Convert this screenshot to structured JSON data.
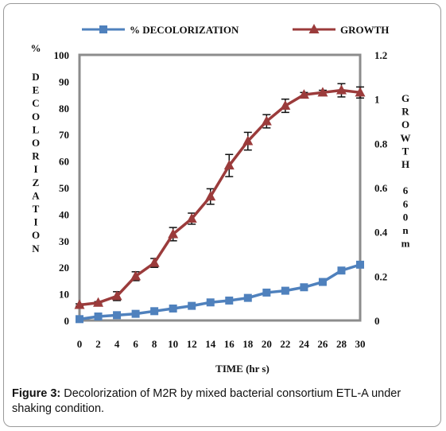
{
  "chart_data": {
    "type": "line",
    "xlabel": "TIME (hr s)",
    "ylabel_left_letters": [
      "D",
      "E",
      "C",
      "O",
      "L",
      "O",
      "R",
      "I",
      "Z",
      "A",
      "T",
      "I",
      "O",
      "N"
    ],
    "ylabel_left_prefix": "%",
    "ylabel_right_letters": [
      "G",
      "R",
      "O",
      "W",
      "T",
      "H",
      "",
      "6",
      "6",
      "0",
      "n",
      "m"
    ],
    "xlim": [
      0,
      30
    ],
    "ylim_left": [
      0,
      100
    ],
    "ylim_right": [
      0,
      1.2
    ],
    "x_ticks": [
      "0",
      "2",
      "4",
      "6",
      "8",
      "10",
      "12",
      "14",
      "16",
      "18",
      "20",
      "22",
      "24",
      "26",
      "28",
      "30"
    ],
    "y_left_ticks": [
      "0",
      "10",
      "20",
      "30",
      "40",
      "50",
      "60",
      "70",
      "80",
      "90",
      "100"
    ],
    "y_right_ticks": [
      "0",
      "0.2",
      "0.4",
      "0.6",
      "0.8",
      "1",
      "1.2"
    ],
    "legend_position": "top",
    "x": [
      0,
      2,
      4,
      6,
      8,
      10,
      12,
      14,
      16,
      18,
      20,
      22,
      24,
      26,
      28,
      30
    ],
    "series": [
      {
        "name": "% DECOLORIZATION",
        "axis": "left",
        "marker": "square",
        "color": "#4f81bd",
        "values": [
          0.5,
          1.5,
          2,
          2.5,
          3.5,
          4.5,
          5.5,
          6.8,
          7.5,
          8.5,
          10.5,
          11.2,
          12.5,
          14.5,
          18.8,
          21
        ]
      },
      {
        "name": "GROWTH",
        "axis": "right",
        "marker": "triangle",
        "color": "#9b3b3b",
        "values": [
          0.07,
          0.08,
          0.11,
          0.2,
          0.26,
          0.39,
          0.46,
          0.56,
          0.7,
          0.81,
          0.9,
          0.97,
          1.02,
          1.03,
          1.04,
          1.03
        ],
        "errors": [
          0.005,
          0.005,
          0.02,
          0.02,
          0.02,
          0.03,
          0.025,
          0.035,
          0.05,
          0.04,
          0.03,
          0.03,
          0.01,
          0.01,
          0.03,
          0.025
        ]
      }
    ]
  },
  "caption": {
    "label": "Figure 3:",
    "text": " Decolorization of M2R by mixed bacterial consortium ETL-A under shaking condition."
  }
}
